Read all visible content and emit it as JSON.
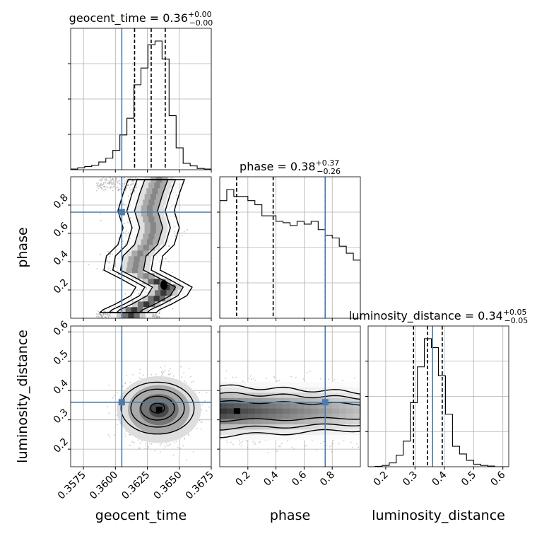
{
  "chart_data": [
    {
      "type": "histogram",
      "parameter": "geocent_time",
      "title": {
        "main": "geocent_time = 0.36",
        "sup": "+0.00",
        "sub": "−0.00"
      },
      "xlim": [
        0.3565,
        0.3675
      ],
      "truth": 0.3605,
      "quantiles": [
        0.3615,
        0.3628,
        0.3639
      ],
      "bin_edges": [
        0.3565,
        0.35705,
        0.3576,
        0.35815,
        0.3587,
        0.35925,
        0.3598,
        0.36035,
        0.3609,
        0.36145,
        0.362,
        0.36255,
        0.3631,
        0.36365,
        0.3642,
        0.36475,
        0.3653,
        0.36585,
        0.3664,
        0.36695,
        0.3675
      ],
      "counts": [
        0.5,
        1.5,
        2.5,
        3.5,
        6,
        9,
        15,
        27,
        40,
        66,
        79,
        97,
        100,
        86,
        42,
        17,
        5,
        3,
        1,
        0.5
      ]
    },
    {
      "type": "histogram",
      "parameter": "phase",
      "title": {
        "main": "phase = 0.38",
        "sup": "+0.37",
        "sub": "−0.26"
      },
      "xlim": [
        0.0,
        1.0
      ],
      "truth": 0.75,
      "quantiles": [
        0.12,
        0.38,
        0.75
      ],
      "bin_edges": [
        0,
        0.05,
        0.1,
        0.15,
        0.2,
        0.25,
        0.3,
        0.35,
        0.4,
        0.45,
        0.5,
        0.55,
        0.6,
        0.65,
        0.7,
        0.75,
        0.8,
        0.85,
        0.9,
        0.95,
        1.0
      ],
      "counts": [
        85,
        93,
        88,
        88,
        85,
        82,
        74,
        74,
        70,
        69,
        67,
        70,
        68,
        70,
        64,
        60,
        58,
        52,
        47,
        42
      ]
    },
    {
      "type": "histogram",
      "parameter": "luminosity_distance",
      "title": {
        "main": "luminosity_distance = 0.34",
        "sup": "+0.05",
        "sub": "−0.05"
      },
      "xlim": [
        0.14,
        0.62
      ],
      "truth": 0.36,
      "quantiles": [
        0.295,
        0.343,
        0.393
      ],
      "bin_edges": [
        0.14,
        0.164,
        0.188,
        0.212,
        0.236,
        0.26,
        0.284,
        0.308,
        0.332,
        0.356,
        0.38,
        0.404,
        0.428,
        0.452,
        0.476,
        0.5,
        0.524,
        0.548,
        0.572,
        0.596,
        0.62
      ],
      "counts": [
        0,
        0.3,
        1,
        3,
        9,
        20,
        50,
        78,
        100,
        93,
        71,
        41,
        16,
        10,
        5,
        2,
        1,
        0.5,
        0,
        0
      ]
    },
    {
      "type": "scatter",
      "x_param": "geocent_time",
      "y_param": "phase",
      "xlim": [
        0.3565,
        0.3675
      ],
      "ylim": [
        0.0,
        1.0
      ],
      "truth": [
        0.3605,
        0.75
      ],
      "ridge": [
        [
          0.3632,
          0.98
        ],
        [
          0.3628,
          0.88
        ],
        [
          0.3624,
          0.76
        ],
        [
          0.3628,
          0.64
        ],
        [
          0.3624,
          0.52
        ],
        [
          0.3615,
          0.44
        ],
        [
          0.3613,
          0.34
        ],
        [
          0.3626,
          0.28
        ],
        [
          0.3638,
          0.22
        ],
        [
          0.3634,
          0.16
        ],
        [
          0.3622,
          0.1
        ],
        [
          0.361,
          0.05
        ]
      ]
    },
    {
      "type": "scatter",
      "x_param": "geocent_time",
      "y_param": "luminosity_distance",
      "xlim": [
        0.3565,
        0.3675
      ],
      "ylim": [
        0.14,
        0.62
      ],
      "truth": [
        0.3605,
        0.36
      ],
      "center": [
        0.3634,
        0.335
      ]
    },
    {
      "type": "scatter",
      "x_param": "phase",
      "y_param": "luminosity_distance",
      "xlim": [
        0.0,
        1.0
      ],
      "ylim": [
        0.14,
        0.62
      ],
      "truth": [
        0.75,
        0.36
      ],
      "center": [
        0.12,
        0.33
      ]
    }
  ],
  "axes": {
    "geocent_time": {
      "label": "geocent_time",
      "ticks": [
        0.3575,
        0.36,
        0.3625,
        0.365,
        0.3675
      ],
      "tick_labels": [
        "0.3575",
        "0.3600",
        "0.3625",
        "0.3650",
        "0.3675"
      ]
    },
    "phase": {
      "label": "phase",
      "ticks": [
        0.2,
        0.4,
        0.6,
        0.8
      ],
      "tick_labels": [
        "0.2",
        "0.4",
        "0.6",
        "0.8"
      ]
    },
    "luminosity_distance": {
      "label": "luminosity_distance",
      "ticks": [
        0.2,
        0.3,
        0.4,
        0.5,
        0.6
      ],
      "tick_labels": [
        "0.2",
        "0.3",
        "0.4",
        "0.5",
        "0.6"
      ]
    }
  },
  "colors": {
    "truth": "#4c7bb0",
    "hist": "#000000",
    "points": "#9a9a9a",
    "grid": "#b0b0b0"
  }
}
